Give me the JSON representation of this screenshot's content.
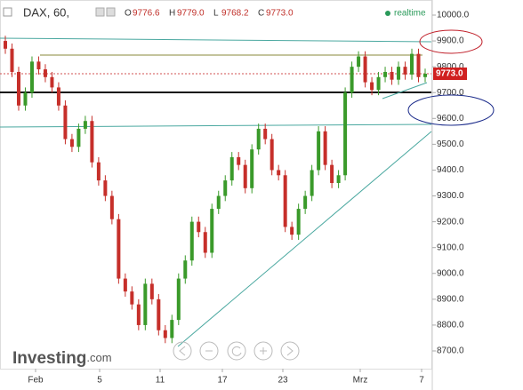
{
  "header": {
    "symbol": "DAX, 60,",
    "ohlc": [
      {
        "key": "O",
        "value": "9776.6"
      },
      {
        "key": "H",
        "value": "9779.0"
      },
      {
        "key": "L",
        "value": "9768.2"
      },
      {
        "key": "C",
        "value": "9773.0"
      }
    ],
    "feed": "realtime"
  },
  "logo": {
    "brand": "Investing",
    "suffix": ".com"
  },
  "chart_data": {
    "type": "candlestick",
    "x_tick_labels": [
      "Feb",
      "5",
      "11",
      "17",
      "23",
      "Mrz",
      "7"
    ],
    "open": [
      9900,
      9870,
      9780,
      9650,
      9700,
      9820,
      9790,
      9760,
      9720,
      9650,
      9520,
      9490,
      9560,
      9590,
      9430,
      9360,
      9300,
      9210,
      8980,
      8930,
      8880,
      8800,
      8960,
      8900,
      8780,
      8750,
      8820,
      8980,
      9050,
      9200,
      9160,
      9080,
      9250,
      9300,
      9360,
      9450,
      9420,
      9330,
      9480,
      9560,
      9520,
      9400,
      9380,
      9180,
      9150,
      9250,
      9300,
      9400,
      9550,
      9420,
      9350,
      9380,
      9700,
      9800,
      9840,
      9740,
      9710,
      9760,
      9780,
      9750,
      9800,
      9770,
      9850,
      9760
    ],
    "high": [
      9920,
      9890,
      9800,
      9720,
      9840,
      9840,
      9810,
      9780,
      9740,
      9670,
      9540,
      9580,
      9610,
      9610,
      9450,
      9380,
      9320,
      9230,
      9000,
      8950,
      8900,
      8980,
      8980,
      8920,
      8800,
      8840,
      9000,
      9070,
      9220,
      9220,
      9180,
      9270,
      9320,
      9380,
      9470,
      9470,
      9440,
      9500,
      9580,
      9580,
      9540,
      9420,
      9400,
      9200,
      9270,
      9320,
      9420,
      9570,
      9570,
      9440,
      9400,
      9720,
      9820,
      9860,
      9860,
      9760,
      9780,
      9800,
      9800,
      9820,
      9820,
      9870,
      9870,
      9793
    ],
    "low": [
      9850,
      9760,
      9630,
      9630,
      9680,
      9770,
      9740,
      9700,
      9630,
      9500,
      9470,
      9470,
      9540,
      9410,
      9340,
      9280,
      9190,
      8960,
      8910,
      8860,
      8780,
      8780,
      8880,
      8760,
      8730,
      8730,
      8800,
      8960,
      9030,
      9140,
      9060,
      9060,
      9230,
      9280,
      9340,
      9400,
      9310,
      9310,
      9460,
      9500,
      9380,
      9360,
      9160,
      9130,
      9130,
      9230,
      9280,
      9380,
      9400,
      9330,
      9330,
      9360,
      9680,
      9780,
      9720,
      9690,
      9690,
      9740,
      9730,
      9730,
      9750,
      9750,
      9740,
      9740
    ],
    "close": [
      9870,
      9780,
      9650,
      9700,
      9820,
      9790,
      9760,
      9720,
      9650,
      9520,
      9490,
      9560,
      9590,
      9430,
      9360,
      9300,
      9210,
      8980,
      8930,
      8880,
      8800,
      8960,
      8900,
      8780,
      8750,
      8820,
      8980,
      9050,
      9200,
      9160,
      9080,
      9250,
      9300,
      9360,
      9450,
      9420,
      9330,
      9480,
      9560,
      9520,
      9400,
      9380,
      9180,
      9150,
      9250,
      9300,
      9400,
      9550,
      9420,
      9350,
      9380,
      9700,
      9800,
      9840,
      9740,
      9710,
      9760,
      9780,
      9750,
      9800,
      9770,
      9850,
      9760,
      9773
    ],
    "up_color": "#3a9a2a",
    "down_color": "#c62f2a",
    "last_price": {
      "value": 9773,
      "label": "9773.0"
    },
    "ylim": [
      8630,
      10060
    ],
    "yticks": [
      {
        "value": 8700,
        "label": "8700.0"
      },
      {
        "value": 8800,
        "label": "8800.0"
      },
      {
        "value": 8900,
        "label": "8900.0"
      },
      {
        "value": 9000,
        "label": "9000.0"
      },
      {
        "value": 9100,
        "label": "9100.0"
      },
      {
        "value": 9200,
        "label": "9200.0"
      },
      {
        "value": 9300,
        "label": "9300.0"
      },
      {
        "value": 9400,
        "label": "9400.0"
      },
      {
        "value": 9500,
        "label": "9500.0"
      },
      {
        "value": 9600,
        "label": "9600.0"
      },
      {
        "value": 9700,
        "label": "9700.0"
      },
      {
        "value": 9800,
        "label": "9800.0"
      },
      {
        "value": 9900,
        "label": "9900.0"
      },
      {
        "value": 10000,
        "label": "10000.0"
      }
    ]
  }
}
